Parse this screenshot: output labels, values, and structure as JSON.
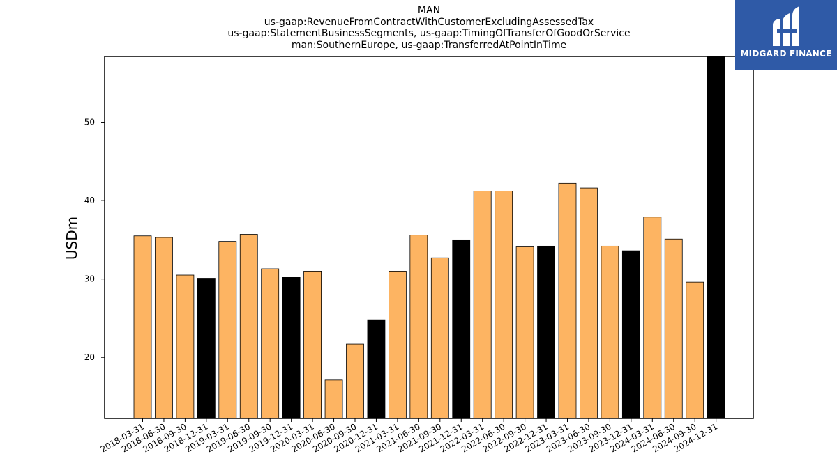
{
  "brand": {
    "name": "MIDGARD FINANCE",
    "bg_color": "#2f5aa7"
  },
  "chart_data": {
    "type": "bar",
    "title_lines": [
      "MAN",
      "us-gaap:RevenueFromContractWithCustomerExcludingAssessedTax",
      "us-gaap:StatementBusinessSegments, us-gaap:TimingOfTransferOfGoodOrService",
      "man:SouthernEurope, us-gaap:TransferredAtPointInTime"
    ],
    "xlabel": "",
    "ylabel": "USDm",
    "ylim": [
      12.2,
      58.4
    ],
    "yticks": [
      20,
      30,
      40,
      50
    ],
    "grid": false,
    "categories": [
      "2018-03-31",
      "2018-06-30",
      "2018-09-30",
      "2018-12-31",
      "2019-03-31",
      "2019-06-30",
      "2019-09-30",
      "2019-12-31",
      "2020-03-31",
      "2020-06-30",
      "2020-09-30",
      "2020-12-31",
      "2021-03-31",
      "2021-06-30",
      "2021-09-30",
      "2021-12-31",
      "2022-03-31",
      "2022-06-30",
      "2022-09-30",
      "2022-12-31",
      "2023-03-31",
      "2023-06-30",
      "2023-09-30",
      "2023-12-31",
      "2024-03-31",
      "2024-06-30",
      "2024-09-30",
      "2024-12-31"
    ],
    "values": [
      35.5,
      35.3,
      30.5,
      30.1,
      34.8,
      35.7,
      31.3,
      30.2,
      31.0,
      17.1,
      21.7,
      24.8,
      31.0,
      35.6,
      32.7,
      35.0,
      41.2,
      41.2,
      34.1,
      34.2,
      42.2,
      41.6,
      34.2,
      33.6,
      37.9,
      35.1,
      29.6,
      58.4
    ],
    "colors": {
      "quarter": "#fdb462",
      "year_end": "#000000"
    }
  }
}
